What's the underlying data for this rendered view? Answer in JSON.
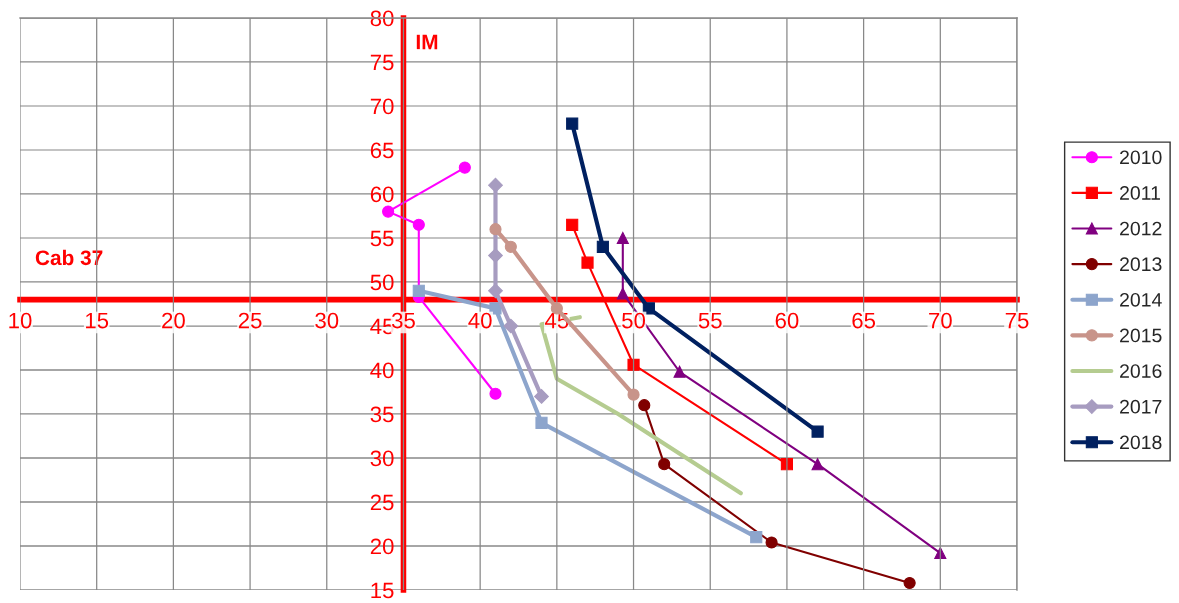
{
  "chart_data": {
    "type": "line",
    "xlabel": "Cab 37",
    "ylabel": "IM",
    "xlim": [
      10,
      75
    ],
    "ylim": [
      15,
      80
    ],
    "xticks": [
      10,
      15,
      20,
      25,
      30,
      35,
      40,
      45,
      50,
      55,
      60,
      65,
      70,
      75
    ],
    "yticks": [
      15,
      20,
      25,
      30,
      35,
      40,
      45,
      50,
      55,
      60,
      65,
      70,
      75,
      80
    ],
    "grid": true,
    "legend": "right",
    "series": [
      {
        "name": "2010",
        "color": "#ff00ff",
        "marker": "circle",
        "x": [
          39,
          34,
          36,
          36,
          41
        ],
        "values": [
          63,
          58,
          56.5,
          48.3,
          37.3
        ]
      },
      {
        "name": "2011",
        "color": "#ff0000",
        "marker": "square",
        "x": [
          46,
          47,
          50,
          60
        ],
        "values": [
          56.5,
          52.2,
          40.6,
          29.3
        ]
      },
      {
        "name": "2012",
        "color": "#800080",
        "marker": "triangle",
        "x": [
          49.3,
          49.3,
          53,
          62,
          70
        ],
        "values": [
          55,
          48.7,
          39.8,
          29.3,
          19.2
        ]
      },
      {
        "name": "2013",
        "color": "#800000",
        "marker": "circle",
        "x": [
          50.7,
          52,
          59,
          68
        ],
        "values": [
          36,
          29.3,
          20.4,
          15.8
        ]
      },
      {
        "name": "2014",
        "color": "#8da5cc",
        "marker": "square",
        "x": [
          36,
          41,
          44,
          58
        ],
        "values": [
          49,
          47,
          34,
          21
        ]
      },
      {
        "name": "2015",
        "color": "#c8948a",
        "marker": "circle",
        "x": [
          41,
          42,
          45,
          50
        ],
        "values": [
          56,
          54,
          47,
          37.2
        ]
      },
      {
        "name": "2016",
        "color": "#b5cc90",
        "marker": "none",
        "x": [
          46.5,
          44,
          45,
          49,
          57
        ],
        "values": [
          46,
          45.2,
          39,
          35,
          26
        ]
      },
      {
        "name": "2017",
        "color": "#a79cc0",
        "marker": "diamond",
        "x": [
          41,
          41,
          41,
          42,
          44
        ],
        "values": [
          61,
          53,
          49,
          45,
          37
        ]
      },
      {
        "name": "2018",
        "color": "#002060",
        "marker": "square",
        "x": [
          46,
          48,
          51,
          62
        ],
        "values": [
          68,
          54,
          47,
          33
        ]
      }
    ]
  }
}
